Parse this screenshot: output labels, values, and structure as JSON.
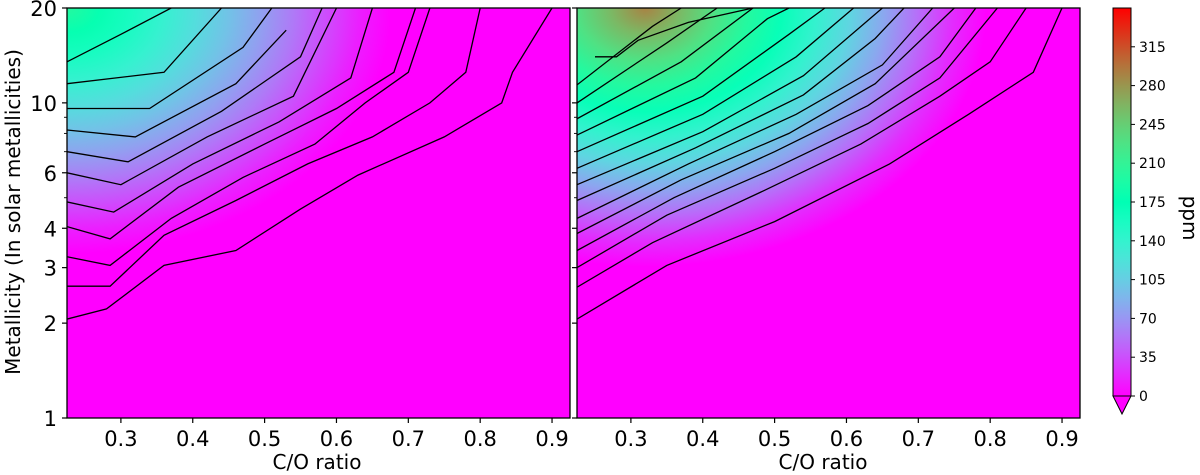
{
  "chart_data": {
    "type": "heatmap",
    "subtype": "filled-contour",
    "shared_ylabel": "Metallicity (In solar metallicities)",
    "yscale": "log",
    "ylim": [
      1,
      20
    ],
    "ytick_values": [
      1,
      2,
      3,
      4,
      6,
      10,
      20
    ],
    "ytick_labels": [
      "1",
      "2",
      "3",
      "4",
      "6",
      "10",
      "20"
    ],
    "colorbar": {
      "label": "ppm",
      "colormap": "rainbow",
      "ticks": [
        0,
        35,
        70,
        105,
        140,
        175,
        210,
        245,
        280,
        315
      ],
      "tick_labels": [
        "0",
        "35",
        "70",
        "105",
        "140",
        "175",
        "210",
        "245",
        "280",
        "315"
      ],
      "range": [
        0,
        350
      ],
      "extend": "min"
    },
    "panels": [
      {
        "xlabel": "C/O ratio",
        "xlim": [
          0.225,
          0.925
        ],
        "xticks": [
          0.3,
          0.4,
          0.5,
          0.6,
          0.7,
          0.8,
          0.9
        ],
        "xtick_labels": [
          "0.3",
          "0.4",
          "0.5",
          "0.6",
          "0.7",
          "0.8",
          "0.9"
        ],
        "contour_interval_ppm": 17.5,
        "peak_ppm": 200,
        "peak_location": {
          "co": 0.225,
          "metallicity": 20
        },
        "contour_lines": [
          {
            "level": 17.5,
            "points": [
              [
                0.225,
                2.06
              ],
              [
                0.28,
                2.22
              ],
              [
                0.36,
                3.05
              ],
              [
                0.46,
                3.4
              ],
              [
                0.55,
                4.6
              ],
              [
                0.63,
                5.9
              ],
              [
                0.75,
                7.8
              ],
              [
                0.83,
                10
              ],
              [
                0.845,
                12.5
              ],
              [
                0.9,
                20
              ]
            ]
          },
          {
            "level": 35,
            "points": [
              [
                0.225,
                2.62
              ],
              [
                0.285,
                2.62
              ],
              [
                0.36,
                3.8
              ],
              [
                0.46,
                4.9
              ],
              [
                0.56,
                6.4
              ],
              [
                0.65,
                7.8
              ],
              [
                0.73,
                10
              ],
              [
                0.78,
                12.5
              ],
              [
                0.8,
                20
              ]
            ]
          },
          {
            "level": 52.5,
            "points": [
              [
                0.225,
                3.25
              ],
              [
                0.285,
                3.05
              ],
              [
                0.37,
                4.3
              ],
              [
                0.47,
                5.8
              ],
              [
                0.57,
                7.4
              ],
              [
                0.64,
                10
              ],
              [
                0.7,
                12.5
              ],
              [
                0.73,
                20
              ]
            ]
          },
          {
            "level": 70,
            "points": [
              [
                0.225,
                4.05
              ],
              [
                0.285,
                3.7
              ],
              [
                0.38,
                5.4
              ],
              [
                0.5,
                7.4
              ],
              [
                0.6,
                9.6
              ],
              [
                0.68,
                12.5
              ],
              [
                0.71,
                20
              ]
            ]
          },
          {
            "level": 87.5,
            "points": [
              [
                0.225,
                4.85
              ],
              [
                0.29,
                4.5
              ],
              [
                0.4,
                6.4
              ],
              [
                0.52,
                8.7
              ],
              [
                0.62,
                12
              ],
              [
                0.65,
                20
              ]
            ]
          },
          {
            "level": 105,
            "points": [
              [
                0.225,
                6
              ],
              [
                0.3,
                5.5
              ],
              [
                0.42,
                7.8
              ],
              [
                0.54,
                10.5
              ],
              [
                0.6,
                20
              ]
            ]
          },
          {
            "level": 122.5,
            "points": [
              [
                0.225,
                7
              ],
              [
                0.31,
                6.5
              ],
              [
                0.44,
                9.4
              ],
              [
                0.55,
                14
              ],
              [
                0.58,
                20
              ]
            ]
          },
          {
            "level": 140,
            "points": [
              [
                0.225,
                8.2
              ],
              [
                0.32,
                7.8
              ],
              [
                0.46,
                11.5
              ],
              [
                0.53,
                17
              ]
            ]
          },
          {
            "level": 157.5,
            "points": [
              [
                0.225,
                9.6
              ],
              [
                0.34,
                9.6
              ],
              [
                0.47,
                15
              ],
              [
                0.51,
                20
              ]
            ]
          },
          {
            "level": 175,
            "points": [
              [
                0.225,
                11.5
              ],
              [
                0.36,
                12.5
              ],
              [
                0.44,
                20
              ]
            ]
          },
          {
            "level": 192.5,
            "points": [
              [
                0.225,
                13.5
              ],
              [
                0.3,
                16.5
              ],
              [
                0.37,
                20
              ]
            ]
          }
        ]
      },
      {
        "xlabel": "C/O ratio",
        "xlim": [
          0.225,
          0.925
        ],
        "xticks": [
          0.3,
          0.4,
          0.5,
          0.6,
          0.7,
          0.8,
          0.9
        ],
        "xtick_labels": [
          "0.3",
          "0.4",
          "0.5",
          "0.6",
          "0.7",
          "0.8",
          "0.9"
        ],
        "contour_interval_ppm": 17.5,
        "peak_ppm": 290,
        "peak_location": {
          "co": 0.32,
          "metallicity": 20
        },
        "contour_lines": [
          {
            "level": 17.5,
            "points": [
              [
                0.225,
                2.06
              ],
              [
                0.35,
                3.05
              ],
              [
                0.5,
                4.2
              ],
              [
                0.66,
                6.4
              ],
              [
                0.77,
                9.2
              ],
              [
                0.86,
                12.5
              ],
              [
                0.9,
                20
              ]
            ]
          },
          {
            "level": 35,
            "points": [
              [
                0.225,
                2.6
              ],
              [
                0.33,
                3.6
              ],
              [
                0.48,
                5.2
              ],
              [
                0.62,
                7.4
              ],
              [
                0.73,
                10.5
              ],
              [
                0.8,
                13.5
              ],
              [
                0.85,
                20
              ]
            ]
          },
          {
            "level": 52.5,
            "points": [
              [
                0.225,
                3.0
              ],
              [
                0.35,
                4.4
              ],
              [
                0.5,
                6.2
              ],
              [
                0.63,
                8.6
              ],
              [
                0.73,
                12
              ],
              [
                0.81,
                20
              ]
            ]
          },
          {
            "level": 70,
            "points": [
              [
                0.225,
                3.4
              ],
              [
                0.36,
                5.0
              ],
              [
                0.5,
                7.0
              ],
              [
                0.63,
                9.8
              ],
              [
                0.73,
                14
              ],
              [
                0.78,
                20
              ]
            ]
          },
          {
            "level": 87.5,
            "points": [
              [
                0.225,
                3.85
              ],
              [
                0.37,
                5.7
              ],
              [
                0.52,
                8.0
              ],
              [
                0.64,
                11.5
              ],
              [
                0.75,
                20
              ]
            ]
          },
          {
            "level": 105,
            "points": [
              [
                0.225,
                4.3
              ],
              [
                0.38,
                6.4
              ],
              [
                0.53,
                9.2
              ],
              [
                0.65,
                13.2
              ],
              [
                0.72,
                20
              ]
            ]
          },
          {
            "level": 122.5,
            "points": [
              [
                0.225,
                4.9
              ],
              [
                0.39,
                7.2
              ],
              [
                0.54,
                10.6
              ],
              [
                0.64,
                16
              ],
              [
                0.68,
                20
              ]
            ]
          },
          {
            "level": 140,
            "points": [
              [
                0.225,
                5.5
              ],
              [
                0.4,
                8.1
              ],
              [
                0.54,
                12.2
              ],
              [
                0.65,
                20
              ]
            ]
          },
          {
            "level": 157.5,
            "points": [
              [
                0.225,
                6.2
              ],
              [
                0.4,
                9.2
              ],
              [
                0.53,
                14
              ],
              [
                0.61,
                20
              ]
            ]
          },
          {
            "level": 175,
            "points": [
              [
                0.225,
                7.0
              ],
              [
                0.4,
                10.5
              ],
              [
                0.52,
                16.5
              ],
              [
                0.57,
                20
              ]
            ]
          },
          {
            "level": 192.5,
            "points": [
              [
                0.225,
                7.9
              ],
              [
                0.39,
                12
              ],
              [
                0.49,
                18.5
              ],
              [
                0.52,
                20
              ]
            ]
          },
          {
            "level": 210,
            "points": [
              [
                0.225,
                8.9
              ],
              [
                0.37,
                13.5
              ],
              [
                0.47,
                20
              ]
            ]
          },
          {
            "level": 227.5,
            "points": [
              [
                0.225,
                10
              ],
              [
                0.35,
                15.5
              ],
              [
                0.42,
                20
              ]
            ]
          },
          {
            "level": 245,
            "points": [
              [
                0.225,
                11.4
              ],
              [
                0.33,
                17.5
              ],
              [
                0.37,
                20
              ]
            ]
          },
          {
            "level": 262.5,
            "points": [
              [
                0.25,
                14
              ],
              [
                0.28,
                14
              ],
              [
                0.31,
                15.8
              ],
              [
                0.38,
                18
              ],
              [
                0.47,
                20
              ]
            ]
          }
        ]
      }
    ]
  }
}
